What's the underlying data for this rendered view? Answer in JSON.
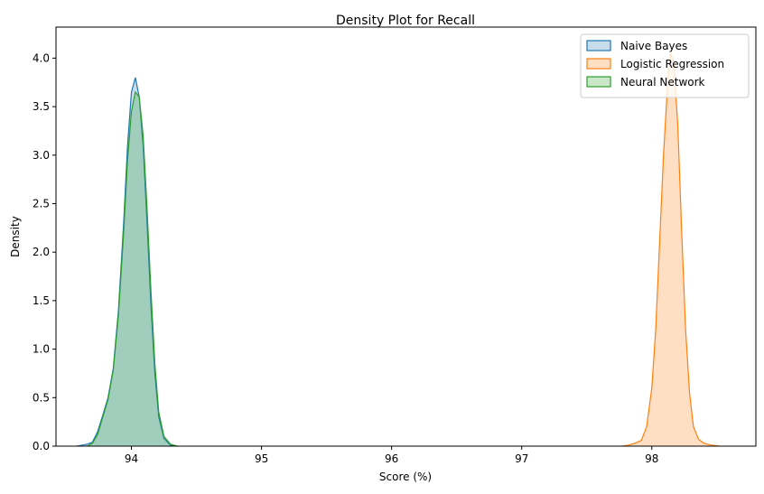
{
  "chart_data": {
    "type": "area",
    "title": "Density Plot for Recall",
    "xlabel": "Score (%)",
    "ylabel": "Density",
    "xlim": [
      93.42,
      98.8
    ],
    "ylim": [
      0,
      4.32
    ],
    "grid": false,
    "legend_position": "top-right",
    "x_ticks": [
      94,
      95,
      96,
      97,
      98
    ],
    "x_tick_labels": [
      "94",
      "95",
      "96",
      "97",
      "98"
    ],
    "y_ticks": [
      0.0,
      0.5,
      1.0,
      1.5,
      2.0,
      2.5,
      3.0,
      3.5,
      4.0
    ],
    "y_tick_labels": [
      "0.0",
      "0.5",
      "1.0",
      "1.5",
      "2.0",
      "2.5",
      "3.0",
      "3.5",
      "4.0"
    ],
    "series": [
      {
        "name": "Naive Bayes",
        "color": "#1f77b4",
        "points": [
          [
            93.58,
            0.0
          ],
          [
            93.62,
            0.01
          ],
          [
            93.66,
            0.02
          ],
          [
            93.7,
            0.04
          ],
          [
            93.74,
            0.15
          ],
          [
            93.78,
            0.32
          ],
          [
            93.82,
            0.5
          ],
          [
            93.86,
            0.8
          ],
          [
            93.9,
            1.4
          ],
          [
            93.94,
            2.3
          ],
          [
            93.97,
            3.1
          ],
          [
            94.0,
            3.65
          ],
          [
            94.03,
            3.8
          ],
          [
            94.06,
            3.6
          ],
          [
            94.09,
            3.1
          ],
          [
            94.12,
            2.3
          ],
          [
            94.15,
            1.45
          ],
          [
            94.18,
            0.75
          ],
          [
            94.21,
            0.3
          ],
          [
            94.25,
            0.08
          ],
          [
            94.3,
            0.01
          ],
          [
            94.35,
            0.0
          ]
        ]
      },
      {
        "name": "Logistic Regression",
        "color": "#ff7f0e",
        "points": [
          [
            97.77,
            0.0
          ],
          [
            97.82,
            0.01
          ],
          [
            97.87,
            0.03
          ],
          [
            97.92,
            0.06
          ],
          [
            97.96,
            0.2
          ],
          [
            98.0,
            0.6
          ],
          [
            98.03,
            1.2
          ],
          [
            98.06,
            2.1
          ],
          [
            98.09,
            3.0
          ],
          [
            98.12,
            3.7
          ],
          [
            98.145,
            4.05
          ],
          [
            98.17,
            3.95
          ],
          [
            98.2,
            3.3
          ],
          [
            98.23,
            2.2
          ],
          [
            98.26,
            1.2
          ],
          [
            98.29,
            0.55
          ],
          [
            98.32,
            0.2
          ],
          [
            98.36,
            0.07
          ],
          [
            98.4,
            0.03
          ],
          [
            98.46,
            0.01
          ],
          [
            98.52,
            0.0
          ]
        ]
      },
      {
        "name": "Neural Network",
        "color": "#2ca02c",
        "points": [
          [
            93.66,
            0.0
          ],
          [
            93.7,
            0.03
          ],
          [
            93.74,
            0.12
          ],
          [
            93.78,
            0.3
          ],
          [
            93.82,
            0.48
          ],
          [
            93.86,
            0.78
          ],
          [
            93.9,
            1.35
          ],
          [
            93.94,
            2.2
          ],
          [
            93.97,
            2.95
          ],
          [
            94.0,
            3.45
          ],
          [
            94.03,
            3.65
          ],
          [
            94.06,
            3.6
          ],
          [
            94.09,
            3.2
          ],
          [
            94.12,
            2.45
          ],
          [
            94.15,
            1.6
          ],
          [
            94.18,
            0.85
          ],
          [
            94.21,
            0.35
          ],
          [
            94.25,
            0.1
          ],
          [
            94.3,
            0.02
          ],
          [
            94.35,
            0.0
          ]
        ]
      }
    ]
  }
}
